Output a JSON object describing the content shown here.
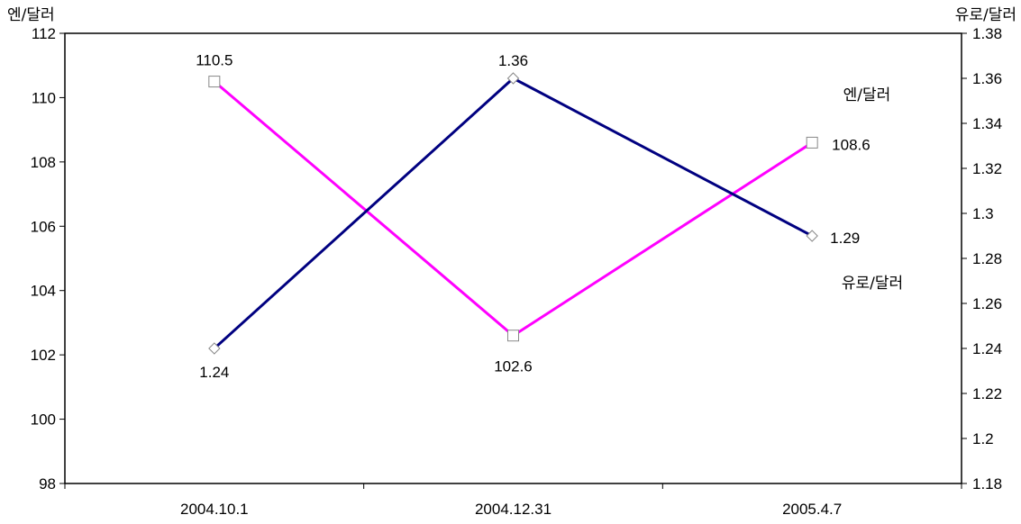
{
  "chart_data": {
    "type": "line",
    "categories": [
      "2004.10.1",
      "2004.12.31",
      "2005.4.7"
    ],
    "left_axis": {
      "label": "엔/달러",
      "min": 98,
      "max": 112,
      "ticks": [
        "98",
        "100",
        "102",
        "104",
        "106",
        "108",
        "110",
        "112"
      ]
    },
    "right_axis": {
      "label": "유로/달러",
      "min": 1.18,
      "max": 1.38,
      "ticks": [
        "1.18",
        "1.2",
        "1.22",
        "1.24",
        "1.26",
        "1.28",
        "1.3",
        "1.32",
        "1.34",
        "1.36",
        "1.38"
      ]
    },
    "grid": false,
    "series": [
      {
        "name": "엔/달러",
        "axis": "left",
        "values": [
          110.5,
          102.6,
          108.6
        ],
        "labels": [
          "110.5",
          "102.6",
          "108.6"
        ],
        "color": "#ff00ff",
        "marker": "square"
      },
      {
        "name": "유로/달러",
        "axis": "right",
        "values": [
          1.24,
          1.36,
          1.29
        ],
        "labels": [
          "1.24",
          "1.36",
          "1.29"
        ],
        "color": "#000080",
        "marker": "diamond"
      }
    ]
  }
}
